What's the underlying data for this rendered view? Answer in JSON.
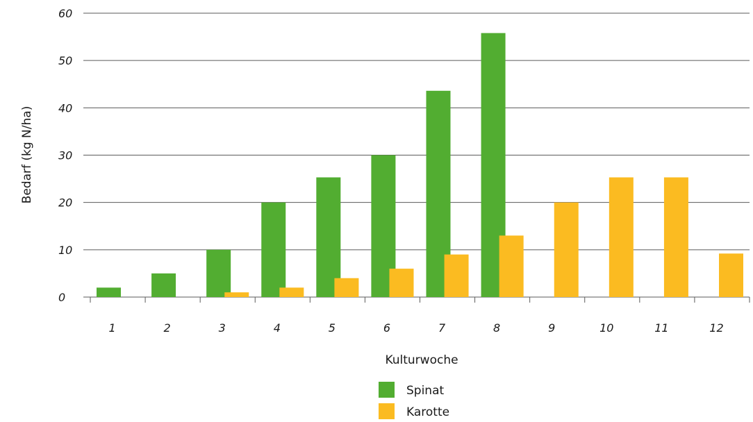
{
  "chart_data": {
    "type": "bar",
    "xlabel": "Kulturwoche",
    "ylabel": "Bedarf (kg N/ha)",
    "ylim": [
      0,
      60
    ],
    "yticks": [
      0,
      10,
      20,
      30,
      40,
      50,
      60
    ],
    "categories": [
      "1",
      "2",
      "3",
      "4",
      "5",
      "6",
      "7",
      "8",
      "9",
      "10",
      "11",
      "12"
    ],
    "series": [
      {
        "name": "Spinat",
        "color": "#52ad31",
        "values": [
          2,
          5,
          10,
          20,
          25.3,
          30,
          43.6,
          55.8,
          0,
          0,
          0,
          0
        ]
      },
      {
        "name": "Karotte",
        "color": "#fbbb21",
        "values": [
          0,
          0,
          1,
          2,
          4,
          6,
          9,
          13,
          20,
          25.3,
          25.3,
          9.2
        ]
      }
    ],
    "grid": true,
    "legend_position": "bottom-center"
  }
}
